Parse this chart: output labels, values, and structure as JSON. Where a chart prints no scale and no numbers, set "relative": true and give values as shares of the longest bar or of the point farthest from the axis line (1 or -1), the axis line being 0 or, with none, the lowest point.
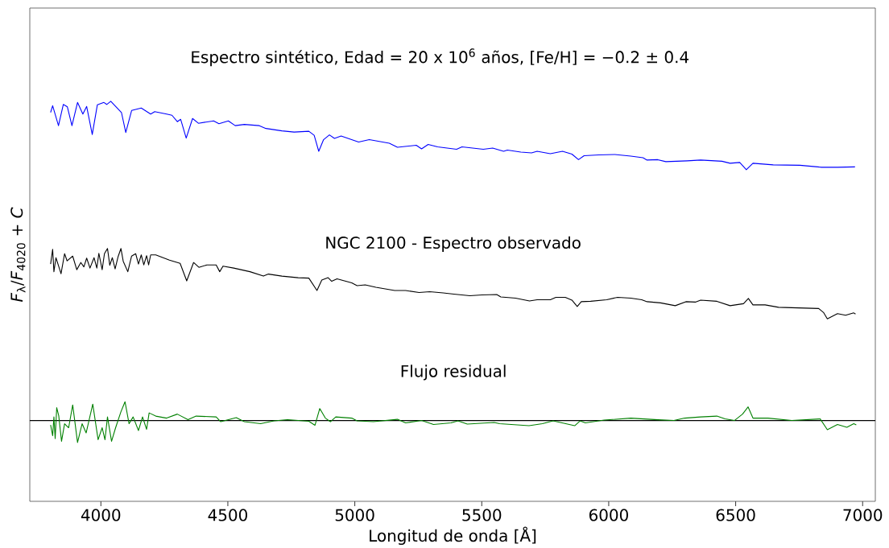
{
  "chart_data": {
    "type": "line",
    "title": "Espectro sintético, Edad = 20 x 10$^{6}$ años, [Fe/H] = −0.2 ± 0.4",
    "xlabel": "Longitud de onda [Å]",
    "ylabel": "*F*$_{λ}$/*F*$_{4020}$ + *C*",
    "relative": true,
    "tick_labels": "x",
    "xlim": [
      3720,
      7050
    ],
    "xticks": [
      4000,
      4500,
      5000,
      5500,
      6000,
      6500,
      7000
    ],
    "ref_lines": [
      {
        "axis": "y",
        "value": 0.202,
        "color": "#000000"
      }
    ],
    "series": [
      {
        "color": "#0000ff",
        "x": [
          3802,
          3810,
          3833,
          3852,
          3868,
          3886,
          3908,
          3929,
          3944,
          3966,
          3986,
          4012,
          4023,
          4039,
          4069,
          4081,
          4098,
          4121,
          4159,
          4196,
          4212,
          4259,
          4280,
          4301,
          4314,
          4336,
          4361,
          4384,
          4444,
          4465,
          4502,
          4529,
          4565,
          4624,
          4650,
          4713,
          4761,
          4819,
          4840,
          4858,
          4877,
          4900,
          4920,
          4946,
          5015,
          5057,
          5136,
          5168,
          5242,
          5263,
          5289,
          5326,
          5401,
          5422,
          5506,
          5543,
          5586,
          5601,
          5654,
          5696,
          5718,
          5770,
          5818,
          5855,
          5881,
          5903,
          5961,
          6024,
          6087,
          6135,
          6151,
          6193,
          6225,
          6309,
          6362,
          6446,
          6478,
          6516,
          6542,
          6568,
          6648,
          6753,
          6838,
          6901,
          6970
        ],
        "values": [
          0.972,
          0.989,
          0.939,
          0.992,
          0.986,
          0.939,
          0.997,
          0.968,
          0.987,
          0.917,
          0.991,
          0.997,
          0.992,
          1.0,
          0.98,
          0.972,
          0.922,
          0.977,
          0.983,
          0.968,
          0.974,
          0.968,
          0.965,
          0.949,
          0.955,
          0.908,
          0.957,
          0.945,
          0.951,
          0.944,
          0.951,
          0.939,
          0.942,
          0.939,
          0.932,
          0.926,
          0.923,
          0.925,
          0.915,
          0.875,
          0.904,
          0.916,
          0.907,
          0.913,
          0.898,
          0.904,
          0.895,
          0.885,
          0.89,
          0.881,
          0.892,
          0.886,
          0.88,
          0.886,
          0.88,
          0.883,
          0.875,
          0.878,
          0.873,
          0.871,
          0.875,
          0.869,
          0.875,
          0.868,
          0.854,
          0.864,
          0.866,
          0.867,
          0.863,
          0.859,
          0.853,
          0.854,
          0.849,
          0.851,
          0.853,
          0.85,
          0.845,
          0.847,
          0.829,
          0.845,
          0.841,
          0.84,
          0.835,
          0.835,
          0.836
        ]
      },
      {
        "name": "NGC 2100 - Espectro observado",
        "color": "#000000",
        "x": [
          3802,
          3810,
          3815,
          3823,
          3831,
          3843,
          3857,
          3867,
          3889,
          3905,
          3921,
          3933,
          3944,
          3957,
          3973,
          3984,
          3992,
          4005,
          4014,
          4026,
          4035,
          4045,
          4056,
          4068,
          4079,
          4088,
          4106,
          4121,
          4137,
          4148,
          4159,
          4169,
          4180,
          4188,
          4196,
          4216,
          4270,
          4312,
          4338,
          4365,
          4386,
          4418,
          4454,
          4468,
          4481,
          4523,
          4587,
          4640,
          4660,
          4713,
          4777,
          4819,
          4851,
          4870,
          4895,
          4909,
          4930,
          4988,
          5009,
          5041,
          5083,
          5157,
          5200,
          5253,
          5295,
          5348,
          5390,
          5453,
          5501,
          5559,
          5575,
          5633,
          5688,
          5718,
          5770,
          5792,
          5829,
          5855,
          5876,
          5892,
          5929,
          5992,
          6035,
          6087,
          6130,
          6151,
          6204,
          6262,
          6304,
          6341,
          6362,
          6426,
          6478,
          6531,
          6550,
          6568,
          6616,
          6669,
          6721,
          6827,
          6846,
          6861,
          6901,
          6933,
          6965,
          6972
        ],
        "values": [
          0.593,
          0.63,
          0.574,
          0.609,
          0.593,
          0.569,
          0.619,
          0.601,
          0.613,
          0.579,
          0.597,
          0.586,
          0.608,
          0.583,
          0.609,
          0.583,
          0.62,
          0.579,
          0.619,
          0.632,
          0.59,
          0.609,
          0.581,
          0.612,
          0.632,
          0.6,
          0.574,
          0.613,
          0.619,
          0.593,
          0.616,
          0.591,
          0.614,
          0.591,
          0.616,
          0.616,
          0.603,
          0.595,
          0.551,
          0.597,
          0.585,
          0.591,
          0.591,
          0.574,
          0.588,
          0.583,
          0.574,
          0.563,
          0.568,
          0.563,
          0.559,
          0.558,
          0.527,
          0.553,
          0.559,
          0.55,
          0.556,
          0.546,
          0.539,
          0.541,
          0.535,
          0.527,
          0.527,
          0.522,
          0.524,
          0.521,
          0.518,
          0.514,
          0.516,
          0.517,
          0.511,
          0.508,
          0.501,
          0.504,
          0.504,
          0.51,
          0.51,
          0.503,
          0.487,
          0.499,
          0.5,
          0.504,
          0.51,
          0.508,
          0.504,
          0.499,
          0.496,
          0.489,
          0.499,
          0.498,
          0.503,
          0.5,
          0.489,
          0.494,
          0.507,
          0.491,
          0.491,
          0.485,
          0.484,
          0.482,
          0.472,
          0.456,
          0.469,
          0.465,
          0.471,
          0.468
        ]
      },
      {
        "name": "Flujo residual",
        "color": "#008000",
        "x": [
          3802,
          3810,
          3815,
          3820,
          3826,
          3834,
          3845,
          3857,
          3873,
          3889,
          3908,
          3926,
          3942,
          3968,
          3989,
          4005,
          4016,
          4026,
          4042,
          4058,
          4079,
          4095,
          4111,
          4127,
          4148,
          4164,
          4180,
          4190,
          4216,
          4259,
          4301,
          4343,
          4375,
          4454,
          4472,
          4533,
          4565,
          4629,
          4682,
          4735,
          4819,
          4843,
          4862,
          4884,
          4904,
          4925,
          4988,
          5009,
          5073,
          5168,
          5200,
          5263,
          5310,
          5379,
          5406,
          5443,
          5549,
          5570,
          5686,
          5739,
          5781,
          5866,
          5887,
          5908,
          5982,
          6087,
          6193,
          6257,
          6299,
          6362,
          6426,
          6458,
          6495,
          6527,
          6549,
          6568,
          6627,
          6721,
          6833,
          6861,
          6901,
          6938,
          6965,
          6975
        ],
        "values": [
          0.191,
          0.164,
          0.211,
          0.157,
          0.234,
          0.214,
          0.15,
          0.194,
          0.184,
          0.241,
          0.147,
          0.194,
          0.171,
          0.243,
          0.154,
          0.184,
          0.154,
          0.211,
          0.15,
          0.184,
          0.224,
          0.249,
          0.194,
          0.211,
          0.177,
          0.211,
          0.18,
          0.221,
          0.213,
          0.208,
          0.218,
          0.204,
          0.213,
          0.211,
          0.199,
          0.209,
          0.199,
          0.194,
          0.201,
          0.204,
          0.2,
          0.19,
          0.232,
          0.208,
          0.199,
          0.211,
          0.208,
          0.201,
          0.199,
          0.205,
          0.196,
          0.202,
          0.192,
          0.196,
          0.201,
          0.193,
          0.197,
          0.194,
          0.189,
          0.194,
          0.201,
          0.189,
          0.201,
          0.196,
          0.203,
          0.208,
          0.204,
          0.202,
          0.208,
          0.211,
          0.213,
          0.206,
          0.202,
          0.218,
          0.236,
          0.208,
          0.208,
          0.202,
          0.206,
          0.179,
          0.192,
          0.185,
          0.194,
          0.191
        ]
      }
    ]
  }
}
